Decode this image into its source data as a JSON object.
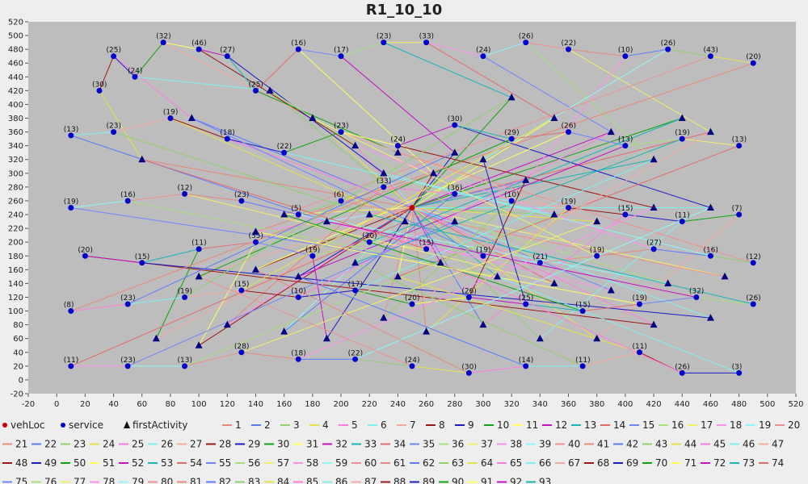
{
  "chart_data": {
    "type": "scatter",
    "title": "R1_10_10",
    "xlabel": "",
    "ylabel": "",
    "xlim": [
      -20,
      520
    ],
    "ylim": [
      -20,
      520
    ],
    "xticks": [
      -20,
      0,
      20,
      40,
      60,
      80,
      100,
      120,
      140,
      160,
      180,
      200,
      220,
      240,
      260,
      280,
      300,
      320,
      340,
      360,
      380,
      400,
      420,
      440,
      460,
      480,
      500,
      520
    ],
    "yticks": [
      -20,
      0,
      20,
      40,
      60,
      80,
      100,
      120,
      140,
      160,
      180,
      200,
      220,
      240,
      260,
      280,
      300,
      320,
      340,
      360,
      380,
      400,
      420,
      440,
      460,
      480,
      500,
      520
    ],
    "grid": false,
    "legend_position": "bottom",
    "background_color": "#bdbdbd",
    "depot": {
      "x": 250,
      "y": 250,
      "label": "vehLoc"
    },
    "legend": {
      "markers": [
        {
          "label": "vehLoc",
          "shape": "circle",
          "color": "#cc0000"
        },
        {
          "label": "service",
          "shape": "circle",
          "color": "#0000cc"
        },
        {
          "label": "firstActivity",
          "shape": "triangle",
          "color": "#111111"
        }
      ],
      "routes": [
        "1",
        "2",
        "3",
        "4",
        "5",
        "6",
        "7",
        "8",
        "9",
        "10",
        "11",
        "12",
        "13",
        "14",
        "15",
        "16",
        "17",
        "18",
        "19",
        "20",
        "21",
        "22",
        "23",
        "24",
        "25",
        "26",
        "27",
        "28",
        "29",
        "30",
        "31",
        "32",
        "33",
        "34",
        "35",
        "36",
        "37",
        "38",
        "39",
        "40",
        "41",
        "42",
        "43",
        "44",
        "45",
        "46",
        "47",
        "48",
        "49",
        "50",
        "51",
        "52",
        "53",
        "54",
        "55",
        "56",
        "57",
        "58",
        "59",
        "60",
        "61",
        "62",
        "63",
        "64",
        "65",
        "66",
        "67",
        "68",
        "69",
        "70",
        "71",
        "72",
        "73",
        "74",
        "75",
        "76",
        "77",
        "78",
        "79",
        "80",
        "81",
        "82",
        "83",
        "84",
        "85",
        "86",
        "87",
        "88",
        "89",
        "90",
        "91",
        "92",
        "93"
      ]
    },
    "route_colors": [
      "#e8887a",
      "#5a7bff",
      "#8fd16b",
      "#e6e24a",
      "#ff7de0",
      "#7ff0f0",
      "#f4a9a0",
      "#9c1818",
      "#1c1cc7",
      "#0fa30f",
      "#ffff60",
      "#c411c4",
      "#18b6b6",
      "#e56c6c",
      "#6f84ff",
      "#a8e07c",
      "#f2ef6a",
      "#ff8ef0",
      "#8ef8f8",
      "#ee9090"
    ],
    "series": [
      {
        "name": "service",
        "points": [
          {
            "x": 30,
            "y": 420,
            "label": "(30)"
          },
          {
            "x": 40,
            "y": 470,
            "label": "(25)"
          },
          {
            "x": 55,
            "y": 440,
            "label": "(24)"
          },
          {
            "x": 75,
            "y": 490,
            "label": "(32)"
          },
          {
            "x": 100,
            "y": 480,
            "label": "(46)"
          },
          {
            "x": 120,
            "y": 470,
            "label": "(27)"
          },
          {
            "x": 140,
            "y": 420,
            "label": "(25)"
          },
          {
            "x": 170,
            "y": 480,
            "label": "(16)"
          },
          {
            "x": 200,
            "y": 470,
            "label": "(17)"
          },
          {
            "x": 230,
            "y": 490,
            "label": "(23)"
          },
          {
            "x": 260,
            "y": 490,
            "label": "(33)"
          },
          {
            "x": 300,
            "y": 470,
            "label": "(24)"
          },
          {
            "x": 330,
            "y": 490,
            "label": "(26)"
          },
          {
            "x": 360,
            "y": 480,
            "label": "(22)"
          },
          {
            "x": 400,
            "y": 470,
            "label": "(10)"
          },
          {
            "x": 430,
            "y": 480,
            "label": "(26)"
          },
          {
            "x": 460,
            "y": 470,
            "label": "(43)"
          },
          {
            "x": 490,
            "y": 460,
            "label": "(20)"
          },
          {
            "x": 10,
            "y": 355,
            "label": "(13)"
          },
          {
            "x": 40,
            "y": 360,
            "label": "(23)"
          },
          {
            "x": 80,
            "y": 380,
            "label": "(19)"
          },
          {
            "x": 120,
            "y": 350,
            "label": "(18)"
          },
          {
            "x": 160,
            "y": 330,
            "label": "(22)"
          },
          {
            "x": 200,
            "y": 360,
            "label": "(23)"
          },
          {
            "x": 240,
            "y": 340,
            "label": "(24)"
          },
          {
            "x": 280,
            "y": 370,
            "label": "(30)"
          },
          {
            "x": 320,
            "y": 350,
            "label": "(29)"
          },
          {
            "x": 360,
            "y": 360,
            "label": "(26)"
          },
          {
            "x": 400,
            "y": 340,
            "label": "(13)"
          },
          {
            "x": 440,
            "y": 350,
            "label": "(19)"
          },
          {
            "x": 480,
            "y": 340,
            "label": "(13)"
          },
          {
            "x": 10,
            "y": 250,
            "label": "(19)"
          },
          {
            "x": 50,
            "y": 260,
            "label": "(16)"
          },
          {
            "x": 90,
            "y": 270,
            "label": "(12)"
          },
          {
            "x": 130,
            "y": 260,
            "label": "(23)"
          },
          {
            "x": 170,
            "y": 240,
            "label": "(5)"
          },
          {
            "x": 200,
            "y": 260,
            "label": "(6)"
          },
          {
            "x": 230,
            "y": 280,
            "label": "(33)"
          },
          {
            "x": 280,
            "y": 270,
            "label": "(36)"
          },
          {
            "x": 320,
            "y": 260,
            "label": "(10)"
          },
          {
            "x": 360,
            "y": 250,
            "label": "(19)"
          },
          {
            "x": 400,
            "y": 240,
            "label": "(15)"
          },
          {
            "x": 440,
            "y": 230,
            "label": "(11)"
          },
          {
            "x": 480,
            "y": 240,
            "label": "(7)"
          },
          {
            "x": 20,
            "y": 180,
            "label": "(20)"
          },
          {
            "x": 60,
            "y": 170,
            "label": "(15)"
          },
          {
            "x": 100,
            "y": 190,
            "label": "(11)"
          },
          {
            "x": 140,
            "y": 200,
            "label": "(35)"
          },
          {
            "x": 180,
            "y": 180,
            "label": "(19)"
          },
          {
            "x": 220,
            "y": 200,
            "label": "(20)"
          },
          {
            "x": 260,
            "y": 190,
            "label": "(15)"
          },
          {
            "x": 300,
            "y": 180,
            "label": "(19)"
          },
          {
            "x": 340,
            "y": 170,
            "label": "(21)"
          },
          {
            "x": 380,
            "y": 180,
            "label": "(19)"
          },
          {
            "x": 420,
            "y": 190,
            "label": "(27)"
          },
          {
            "x": 460,
            "y": 180,
            "label": "(16)"
          },
          {
            "x": 490,
            "y": 170,
            "label": "(12)"
          },
          {
            "x": 10,
            "y": 100,
            "label": "(8)"
          },
          {
            "x": 50,
            "y": 110,
            "label": "(23)"
          },
          {
            "x": 90,
            "y": 120,
            "label": "(19)"
          },
          {
            "x": 130,
            "y": 130,
            "label": "(15)"
          },
          {
            "x": 170,
            "y": 120,
            "label": "(10)"
          },
          {
            "x": 210,
            "y": 130,
            "label": "(17)"
          },
          {
            "x": 250,
            "y": 110,
            "label": "(20)"
          },
          {
            "x": 290,
            "y": 120,
            "label": "(26)"
          },
          {
            "x": 330,
            "y": 110,
            "label": "(25)"
          },
          {
            "x": 370,
            "y": 100,
            "label": "(15)"
          },
          {
            "x": 410,
            "y": 110,
            "label": "(19)"
          },
          {
            "x": 450,
            "y": 120,
            "label": "(32)"
          },
          {
            "x": 490,
            "y": 110,
            "label": "(26)"
          },
          {
            "x": 10,
            "y": 20,
            "label": "(11)"
          },
          {
            "x": 50,
            "y": 20,
            "label": "(23)"
          },
          {
            "x": 90,
            "y": 20,
            "label": "(13)"
          },
          {
            "x": 130,
            "y": 40,
            "label": "(28)"
          },
          {
            "x": 170,
            "y": 30,
            "label": "(18)"
          },
          {
            "x": 210,
            "y": 30,
            "label": "(22)"
          },
          {
            "x": 250,
            "y": 20,
            "label": "(24)"
          },
          {
            "x": 290,
            "y": 10,
            "label": "(30)"
          },
          {
            "x": 330,
            "y": 20,
            "label": "(14)"
          },
          {
            "x": 370,
            "y": 20,
            "label": "(11)"
          },
          {
            "x": 410,
            "y": 40,
            "label": "(11)"
          },
          {
            "x": 440,
            "y": 10,
            "label": "(26)"
          },
          {
            "x": 480,
            "y": 10,
            "label": "(3)"
          }
        ]
      },
      {
        "name": "firstActivity",
        "points": [
          {
            "x": 60,
            "y": 320
          },
          {
            "x": 95,
            "y": 380
          },
          {
            "x": 150,
            "y": 420
          },
          {
            "x": 180,
            "y": 380
          },
          {
            "x": 210,
            "y": 340
          },
          {
            "x": 230,
            "y": 300
          },
          {
            "x": 240,
            "y": 330
          },
          {
            "x": 265,
            "y": 300
          },
          {
            "x": 280,
            "y": 330
          },
          {
            "x": 320,
            "y": 410
          },
          {
            "x": 350,
            "y": 380
          },
          {
            "x": 390,
            "y": 360
          },
          {
            "x": 420,
            "y": 320
          },
          {
            "x": 460,
            "y": 360
          },
          {
            "x": 330,
            "y": 290
          },
          {
            "x": 300,
            "y": 320
          },
          {
            "x": 160,
            "y": 240
          },
          {
            "x": 140,
            "y": 215
          },
          {
            "x": 190,
            "y": 230
          },
          {
            "x": 220,
            "y": 240
          },
          {
            "x": 245,
            "y": 230
          },
          {
            "x": 280,
            "y": 230
          },
          {
            "x": 350,
            "y": 240
          },
          {
            "x": 380,
            "y": 230
          },
          {
            "x": 420,
            "y": 250
          },
          {
            "x": 460,
            "y": 250
          },
          {
            "x": 100,
            "y": 150
          },
          {
            "x": 140,
            "y": 160
          },
          {
            "x": 170,
            "y": 150
          },
          {
            "x": 210,
            "y": 170
          },
          {
            "x": 240,
            "y": 150
          },
          {
            "x": 270,
            "y": 170
          },
          {
            "x": 310,
            "y": 150
          },
          {
            "x": 350,
            "y": 140
          },
          {
            "x": 390,
            "y": 130
          },
          {
            "x": 430,
            "y": 140
          },
          {
            "x": 470,
            "y": 150
          },
          {
            "x": 120,
            "y": 80
          },
          {
            "x": 160,
            "y": 70
          },
          {
            "x": 230,
            "y": 90
          },
          {
            "x": 260,
            "y": 70
          },
          {
            "x": 300,
            "y": 80
          },
          {
            "x": 340,
            "y": 60
          },
          {
            "x": 380,
            "y": 60
          },
          {
            "x": 420,
            "y": 80
          },
          {
            "x": 460,
            "y": 90
          },
          {
            "x": 70,
            "y": 60
          },
          {
            "x": 100,
            "y": 50
          },
          {
            "x": 190,
            "y": 60
          },
          {
            "x": 440,
            "y": 380
          }
        ]
      }
    ]
  }
}
